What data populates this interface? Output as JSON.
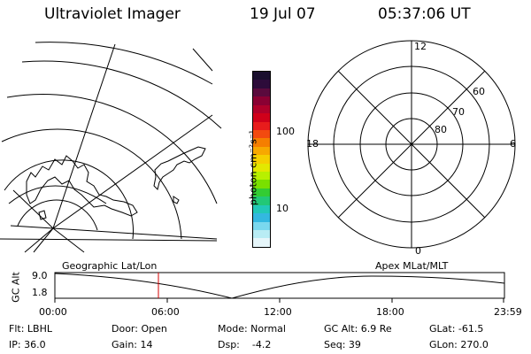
{
  "header": {
    "title": "Ultraviolet Imager",
    "date": "19 Jul 07",
    "time": "05:37:06 UT"
  },
  "colorbar": {
    "unit_label": "photon cm⁻²s⁻¹",
    "ticks": [
      "100",
      "10"
    ],
    "colors": [
      "#1a0f2e",
      "#2d0b3a",
      "#5a0a3d",
      "#8a0033",
      "#b0002a",
      "#d0001a",
      "#e81c1c",
      "#f24a0f",
      "#f57e00",
      "#f7a800",
      "#f5cf00",
      "#e3e800",
      "#b8f000",
      "#7ae000",
      "#33cc33",
      "#22c877",
      "#22c8b8",
      "#33b8e0",
      "#7ad8ee",
      "#b8ecf4",
      "#e6f6fa"
    ]
  },
  "polar_plot": {
    "labels": {
      "top": "12",
      "bottom": "0",
      "left": "18",
      "right": "6"
    },
    "lat_labels": [
      "60",
      "70",
      "80"
    ]
  },
  "timeline": {
    "left_label": "Geographic Lat/Lon",
    "right_label": "Apex MLat/MLT",
    "yaxis": "GC Alt",
    "yticks": [
      "9.0",
      "1.8"
    ],
    "xticks": [
      "00:00",
      "06:00",
      "12:00",
      "18:00",
      "23:59"
    ],
    "marker_color": "#d40000"
  },
  "footer": {
    "flt": "Flt: LBHL",
    "ip": "IP: 36.0",
    "door": "Door: Open",
    "gain": "Gain: 14",
    "mode": "Mode: Normal",
    "dsp": "Dsp:    -4.2",
    "gc_alt": "GC Alt: 6.9 Re",
    "seq": "Seq: 39",
    "glat": "GLat: -61.5",
    "glon": "GLon: 270.0"
  }
}
